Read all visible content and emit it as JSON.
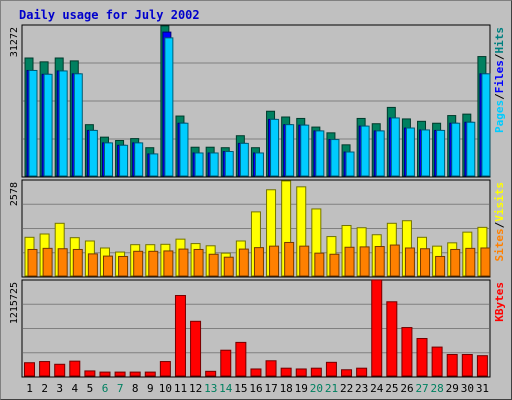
{
  "chart_data": {
    "type": "bar",
    "title": "Daily usage for July 2002",
    "days": [
      "1",
      "2",
      "3",
      "4",
      "5",
      "6",
      "7",
      "8",
      "9",
      "10",
      "11",
      "12",
      "13",
      "14",
      "15",
      "16",
      "17",
      "18",
      "19",
      "20",
      "21",
      "22",
      "23",
      "24",
      "25",
      "26",
      "27",
      "28",
      "29",
      "30",
      "31"
    ],
    "weekend_days": [
      "6",
      "7",
      "13",
      "14",
      "20",
      "21",
      "27",
      "28"
    ],
    "panels": [
      {
        "ylabel_max": "31272",
        "ymax": 31272,
        "legend": [
          "Pages",
          "/",
          "Files",
          "/",
          "Hits"
        ],
        "legend_colors": [
          "#00ccff",
          "#000000",
          "#0000ff",
          "#000000",
          "#008080"
        ],
        "series": [
          {
            "name": "Hits",
            "color": "#008060",
            "values": [
              24600,
              23800,
              24600,
              24000,
              10700,
              8100,
              7400,
              7800,
              5900,
              31300,
              12500,
              6000,
              6000,
              5900,
              8400,
              5900,
              13500,
              12300,
              12000,
              10200,
              9000,
              6500,
              12000,
              10900,
              14300,
              11900,
              11400,
              11000,
              12600,
              12900,
              24900
            ]
          },
          {
            "name": "Files",
            "color": "#0000ff",
            "values": [
              22000,
              21200,
              21900,
              21300,
              9500,
              6900,
              6400,
              6900,
              4600,
              30000,
              11000,
              4800,
              4800,
              5100,
              6800,
              4800,
              11800,
              10700,
              10600,
              9400,
              7600,
              5000,
              10400,
              9400,
              12100,
              10000,
              9600,
              9500,
              11000,
              11200,
              21300
            ]
          },
          {
            "name": "Pages",
            "color": "#00ccff",
            "values": [
              22000,
              21200,
              21900,
              21300,
              9500,
              6900,
              6400,
              6900,
              4600,
              28800,
              11000,
              4800,
              4800,
              5100,
              6800,
              4800,
              11800,
              10700,
              10600,
              9400,
              7600,
              5000,
              10400,
              9400,
              12100,
              10000,
              9600,
              9500,
              11000,
              11200,
              21300
            ]
          }
        ]
      },
      {
        "ylabel_max": "2578",
        "ymax": 2578,
        "legend": [
          "Sites",
          "/",
          "Visits"
        ],
        "legend_colors": [
          "#ff8000",
          "#000000",
          "#ffff00"
        ],
        "series": [
          {
            "name": "Visits",
            "color": "#ffff00",
            "values": [
              1050,
              1140,
              1430,
              1040,
              950,
              760,
              650,
              850,
              850,
              860,
              1000,
              880,
              820,
              620,
              950,
              1740,
              2340,
              2580,
              2420,
              1820,
              1070,
              1370,
              1310,
              1120,
              1430,
              1500,
              1050,
              810,
              900,
              1190,
              1320
            ]
          },
          {
            "name": "Sites",
            "color": "#ff8000",
            "values": [
              720,
              750,
              740,
              720,
              600,
              540,
              530,
              670,
              670,
              680,
              730,
              720,
              590,
              510,
              730,
              770,
              810,
              910,
              810,
              620,
              590,
              780,
              790,
              800,
              840,
              760,
              740,
              530,
              720,
              750,
              760
            ]
          }
        ]
      },
      {
        "ylabel_max": "1215725",
        "ymax": 1215725,
        "legend": [
          "KBytes"
        ],
        "legend_colors": [
          "#ff0000"
        ],
        "series": [
          {
            "name": "KBytes",
            "color": "#ff0000",
            "values": [
              170000,
              185000,
              150000,
              190000,
              65000,
              50000,
              50000,
              50000,
              50000,
              185000,
              1030000,
              700000,
              60000,
              330000,
              430000,
              90000,
              195000,
              100000,
              90000,
              100000,
              175000,
              80000,
              100000,
              1230000,
              950000,
              620000,
              480000,
              370000,
              275000,
              275000,
              260000
            ]
          }
        ]
      }
    ]
  }
}
